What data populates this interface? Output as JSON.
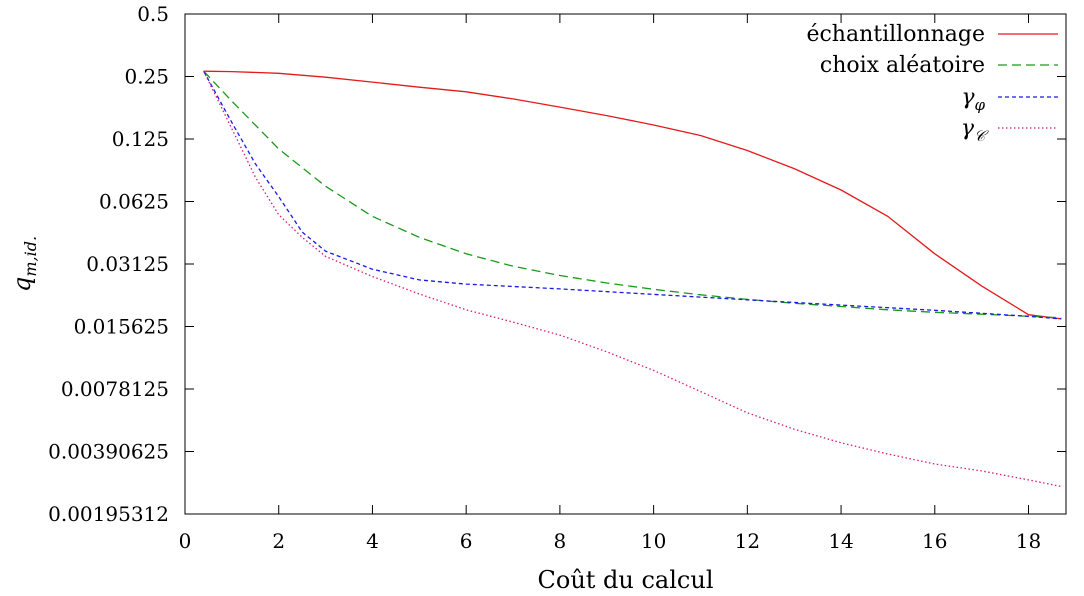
{
  "chart_data": {
    "type": "line",
    "xlabel": "Coût du calcul",
    "ylabel": "q_{m,id.}",
    "ylabel_main": "q",
    "ylabel_sub": "m,id.",
    "xlim": [
      0,
      18.8
    ],
    "x_ticks": [
      0,
      2,
      4,
      6,
      8,
      10,
      12,
      14,
      16,
      18
    ],
    "x_tick_labels": [
      "0",
      "2",
      "4",
      "6",
      "8",
      "10",
      "12",
      "14",
      "16",
      "18"
    ],
    "y_scale": "log2",
    "ylim": [
      0.001953125,
      0.5
    ],
    "y_ticks": [
      0.5,
      0.25,
      0.125,
      0.0625,
      0.03125,
      0.015625,
      0.0078125,
      0.00390625,
      0.001953125
    ],
    "y_tick_labels": [
      "0.5",
      "0.25",
      "0.125",
      "0.0625",
      "0.03125",
      "0.015625",
      "0.0078125",
      "0.00390625",
      "0.00195312"
    ],
    "grid": false,
    "legend_position": "top-right",
    "series": [
      {
        "name": "échantillonnage",
        "color": "#e41a1c",
        "dash": "solid",
        "x": [
          0.4,
          1,
          2,
          3,
          4,
          5,
          6,
          7,
          8,
          9,
          10,
          11,
          12,
          13,
          14,
          15,
          16,
          17,
          18,
          18.7
        ],
        "y": [
          0.265,
          0.264,
          0.259,
          0.248,
          0.235,
          0.222,
          0.211,
          0.195,
          0.178,
          0.162,
          0.146,
          0.13,
          0.11,
          0.09,
          0.071,
          0.053,
          0.035,
          0.0245,
          0.0178,
          0.017
        ]
      },
      {
        "name": "choix aléatoire",
        "color": "#1a9a1a",
        "dash": "9,5",
        "x": [
          0.4,
          1,
          2,
          3,
          4,
          5,
          6,
          7,
          8,
          9,
          10,
          11,
          12,
          13,
          14,
          15,
          16,
          17,
          18,
          18.7
        ],
        "y": [
          0.265,
          0.19,
          0.112,
          0.074,
          0.053,
          0.042,
          0.035,
          0.0305,
          0.0275,
          0.0253,
          0.0236,
          0.0222,
          0.0211,
          0.0202,
          0.0195,
          0.0188,
          0.0183,
          0.0179,
          0.0175,
          0.0172
        ]
      },
      {
        "name": "γ_φ",
        "name_main": "γ",
        "name_sub": "φ",
        "color": "#1a1ae4",
        "dash": "4,3",
        "x": [
          0.4,
          1,
          1.5,
          2,
          2.5,
          3,
          4,
          5,
          6,
          8,
          10,
          12,
          14,
          16,
          18,
          18.7
        ],
        "y": [
          0.265,
          0.15,
          0.095,
          0.066,
          0.0445,
          0.036,
          0.0295,
          0.0262,
          0.025,
          0.0237,
          0.0223,
          0.021,
          0.0198,
          0.0187,
          0.0175,
          0.017
        ]
      },
      {
        "name": "γ_𝒞",
        "name_main": "γ",
        "name_sub": "𝒞",
        "color": "#d91a7a",
        "dash": "1.5,2.5",
        "x": [
          0.4,
          1,
          1.5,
          2,
          2.5,
          3,
          4,
          5,
          6,
          7,
          8,
          9,
          10,
          11,
          12,
          13,
          14,
          15,
          16,
          17,
          18,
          18.7
        ],
        "y": [
          0.265,
          0.14,
          0.082,
          0.054,
          0.042,
          0.034,
          0.0272,
          0.0224,
          0.0188,
          0.0164,
          0.0142,
          0.0118,
          0.0096,
          0.0076,
          0.006,
          0.005,
          0.0043,
          0.0038,
          0.0034,
          0.00315,
          0.00285,
          0.00265
        ]
      }
    ]
  }
}
